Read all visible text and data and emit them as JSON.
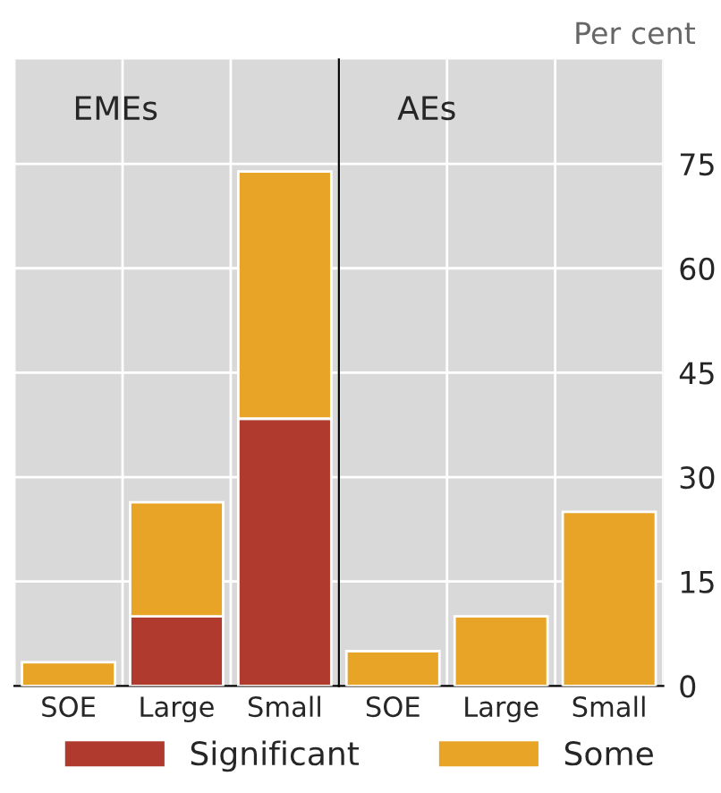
{
  "chart_data": [
    {
      "type": "bar",
      "title": "EMEs",
      "categories": [
        "SOE",
        "Large",
        "Small"
      ],
      "stacked": true,
      "series": [
        {
          "name": "Significant",
          "color": "#b03a2e",
          "values": [
            0,
            10,
            38.4
          ]
        },
        {
          "name": "Some",
          "color": "#e8a427",
          "values": [
            3.4,
            16.4,
            35.5
          ]
        }
      ],
      "ylim": [
        0,
        90
      ],
      "yticks": [
        0,
        15,
        30,
        45,
        60,
        75
      ],
      "grid": true,
      "legend": "bottom",
      "tick_labels": "x"
    },
    {
      "type": "bar",
      "title": "AEs",
      "categories": [
        "SOE",
        "Large",
        "Small"
      ],
      "stacked": true,
      "series": [
        {
          "name": "Significant",
          "color": "#b03a2e",
          "values": [
            0,
            0,
            0
          ]
        },
        {
          "name": "Some",
          "color": "#e8a427",
          "values": [
            5,
            10,
            25
          ]
        }
      ],
      "ylabel": "Per cent",
      "ylim": [
        0,
        90
      ],
      "yticks": [
        0,
        15,
        30,
        45,
        60,
        75
      ],
      "grid": true
    }
  ]
}
